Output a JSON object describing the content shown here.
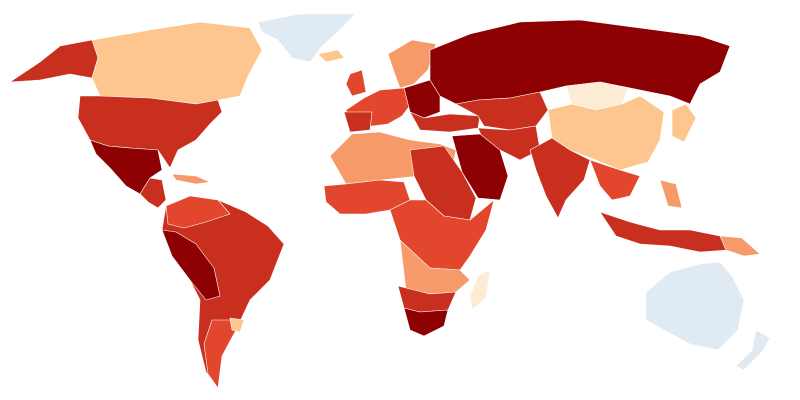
{
  "map": {
    "palette": [
      "#fdebd4",
      "#fdc68f",
      "#f59a68",
      "#e2472e",
      "#c92f1f",
      "#8e0103"
    ],
    "no_data_color": "#dfeaf3"
  }
}
